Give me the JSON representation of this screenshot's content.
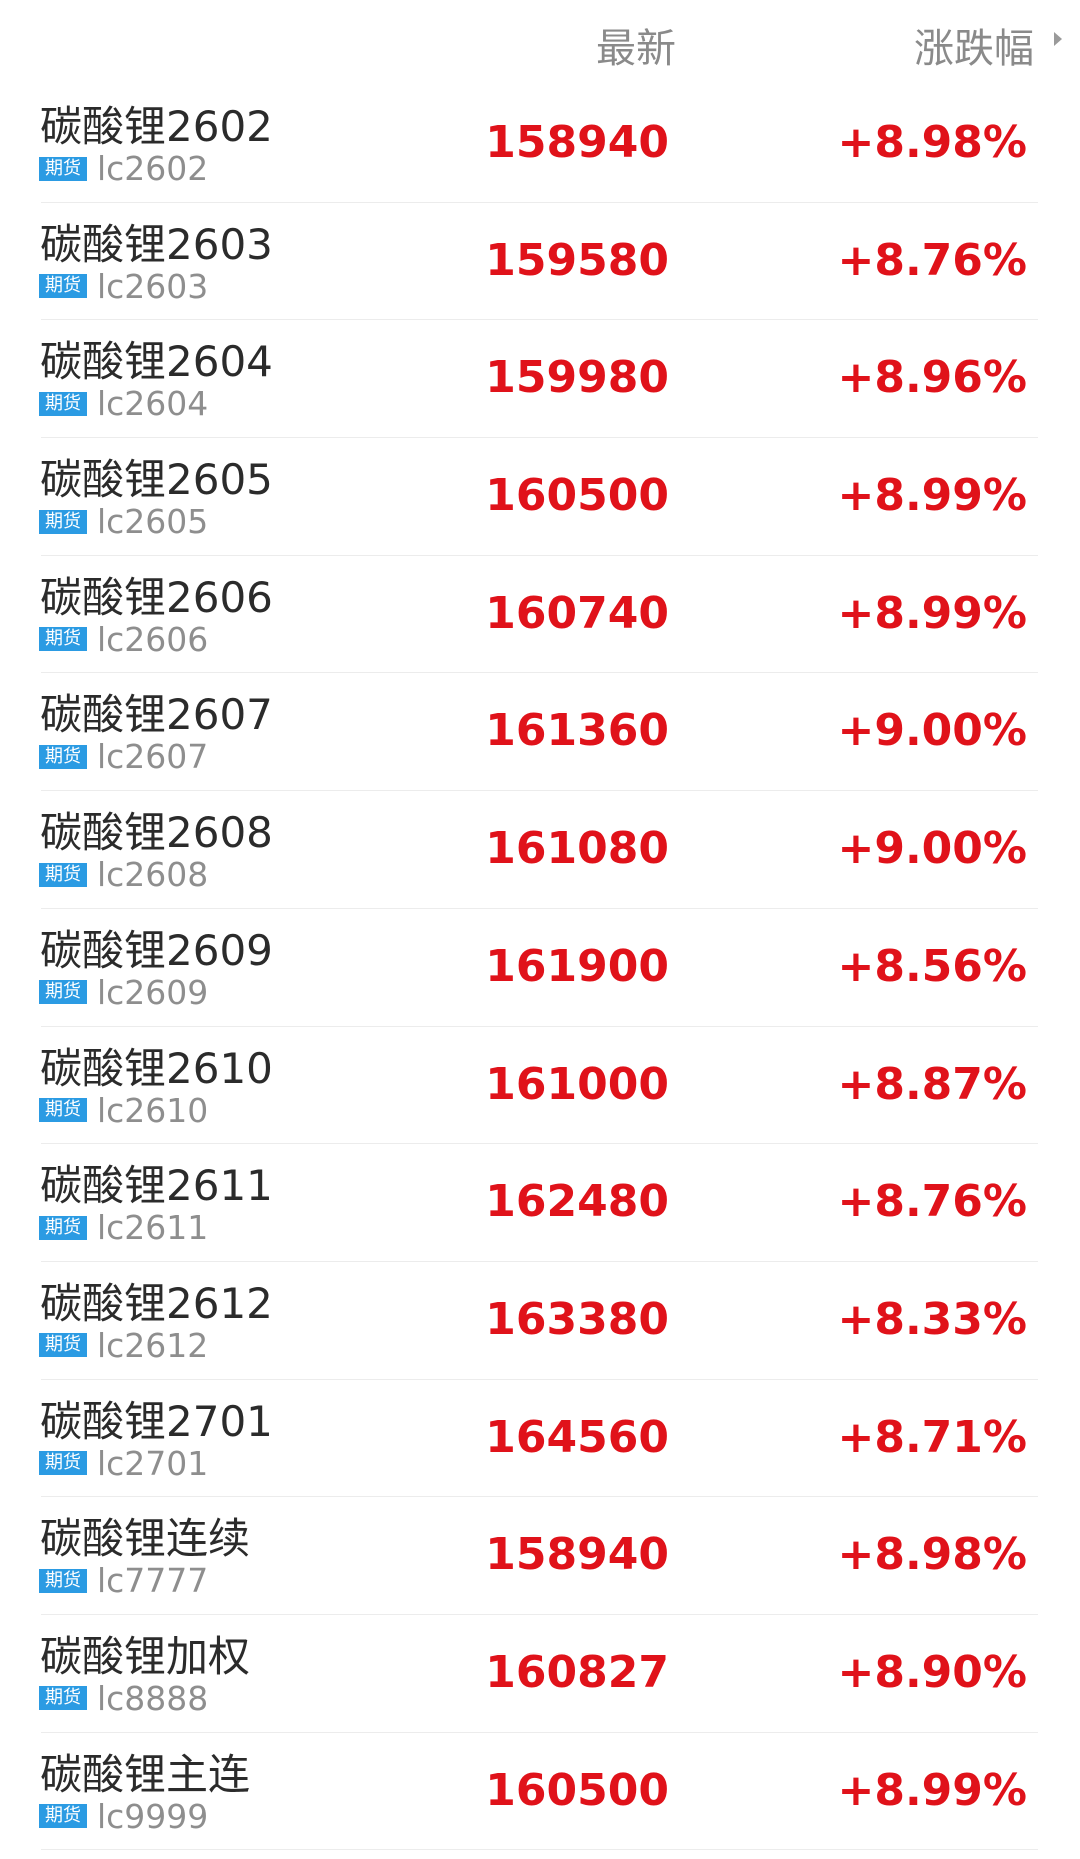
{
  "header": {
    "latest_label": "最新",
    "change_label": "涨跌幅",
    "sort_icon": "caret-right-icon"
  },
  "colors": {
    "up": "#e0121a",
    "badge": "#2b9be3"
  },
  "rows": [
    {
      "name": "碳酸锂2602",
      "badge": "期货",
      "code": "lc2602",
      "price": "158940",
      "change": "+8.98%"
    },
    {
      "name": "碳酸锂2603",
      "badge": "期货",
      "code": "lc2603",
      "price": "159580",
      "change": "+8.76%"
    },
    {
      "name": "碳酸锂2604",
      "badge": "期货",
      "code": "lc2604",
      "price": "159980",
      "change": "+8.96%"
    },
    {
      "name": "碳酸锂2605",
      "badge": "期货",
      "code": "lc2605",
      "price": "160500",
      "change": "+8.99%"
    },
    {
      "name": "碳酸锂2606",
      "badge": "期货",
      "code": "lc2606",
      "price": "160740",
      "change": "+8.99%"
    },
    {
      "name": "碳酸锂2607",
      "badge": "期货",
      "code": "lc2607",
      "price": "161360",
      "change": "+9.00%"
    },
    {
      "name": "碳酸锂2608",
      "badge": "期货",
      "code": "lc2608",
      "price": "161080",
      "change": "+9.00%"
    },
    {
      "name": "碳酸锂2609",
      "badge": "期货",
      "code": "lc2609",
      "price": "161900",
      "change": "+8.56%"
    },
    {
      "name": "碳酸锂2610",
      "badge": "期货",
      "code": "lc2610",
      "price": "161000",
      "change": "+8.87%"
    },
    {
      "name": "碳酸锂2611",
      "badge": "期货",
      "code": "lc2611",
      "price": "162480",
      "change": "+8.76%"
    },
    {
      "name": "碳酸锂2612",
      "badge": "期货",
      "code": "lc2612",
      "price": "163380",
      "change": "+8.33%"
    },
    {
      "name": "碳酸锂2701",
      "badge": "期货",
      "code": "lc2701",
      "price": "164560",
      "change": "+8.71%"
    },
    {
      "name": "碳酸锂连续",
      "badge": "期货",
      "code": "lc7777",
      "price": "158940",
      "change": "+8.98%"
    },
    {
      "name": "碳酸锂加权",
      "badge": "期货",
      "code": "lc8888",
      "price": "160827",
      "change": "+8.90%"
    },
    {
      "name": "碳酸锂主连",
      "badge": "期货",
      "code": "lc9999",
      "price": "160500",
      "change": "+8.99%"
    }
  ]
}
